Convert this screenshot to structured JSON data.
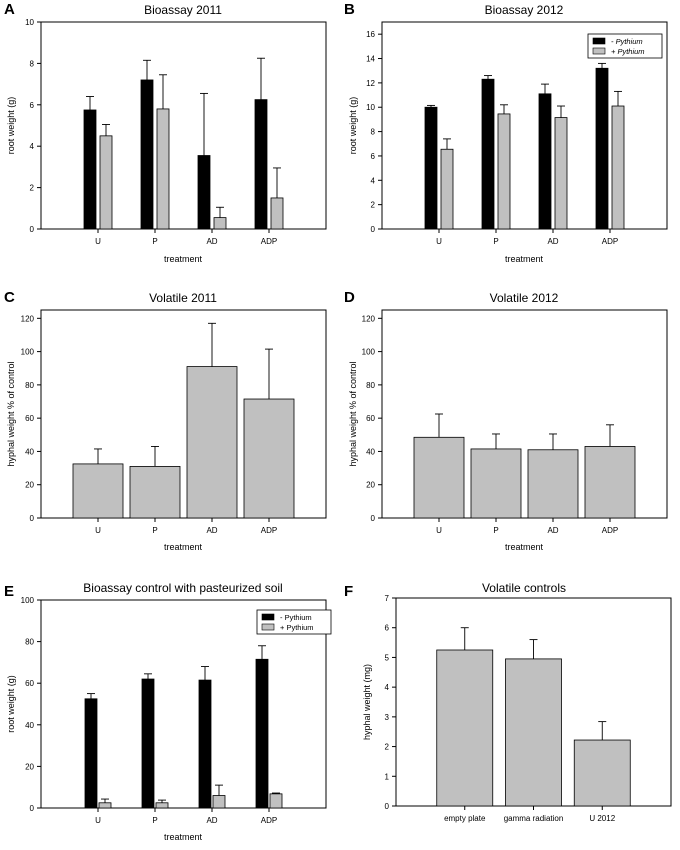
{
  "chart_data": [
    {
      "panel_letter": "A",
      "type": "bar",
      "title": "Bioassay 2011",
      "xlabel": "treatment",
      "ylabel": "root weight (g)",
      "categories": [
        "U",
        "P",
        "AD",
        "ADP"
      ],
      "ylim": [
        0,
        10
      ],
      "yticks": [
        0,
        2,
        4,
        6,
        8,
        10
      ],
      "series": [
        {
          "name": "- Pythium",
          "color": "#000000",
          "values": [
            5.75,
            7.2,
            3.55,
            6.25
          ],
          "errors": [
            0.65,
            0.95,
            3.0,
            2.0
          ]
        },
        {
          "name": "+ Pythium",
          "color": "#c0c0c0",
          "values": [
            4.5,
            5.8,
            0.55,
            1.5
          ],
          "errors": [
            0.55,
            1.65,
            0.5,
            1.45
          ]
        }
      ]
    },
    {
      "panel_letter": "B",
      "type": "bar",
      "title": "Bioassay 2012",
      "xlabel": "treatment",
      "ylabel": "root weight (g)",
      "categories": [
        "U",
        "P",
        "AD",
        "ADP"
      ],
      "ylim": [
        0,
        17
      ],
      "yticks": [
        0,
        2,
        4,
        6,
        8,
        10,
        12,
        14,
        16
      ],
      "legend": {
        "placement": "top-right",
        "italic": true
      },
      "series": [
        {
          "name": "- Pythium",
          "color": "#000000",
          "values": [
            10.0,
            12.3,
            11.1,
            13.2
          ],
          "errors": [
            0.15,
            0.3,
            0.8,
            0.4
          ]
        },
        {
          "name": "+ Pythium",
          "color": "#c0c0c0",
          "values": [
            6.55,
            9.45,
            9.15,
            10.1
          ],
          "errors": [
            0.85,
            0.75,
            0.95,
            1.2
          ]
        }
      ]
    },
    {
      "panel_letter": "C",
      "type": "bar",
      "title": "Volatile 2011",
      "xlabel": "treatment",
      "ylabel": "hyphal weight % of control",
      "categories": [
        "U",
        "P",
        "AD",
        "ADP"
      ],
      "ylim": [
        0,
        125
      ],
      "yticks": [
        0,
        20,
        40,
        60,
        80,
        100,
        120
      ],
      "series": [
        {
          "name": "hyphal weight",
          "color": "#c0c0c0",
          "values": [
            32.5,
            31,
            91,
            71.5
          ],
          "errors": [
            9,
            12,
            26,
            30
          ]
        }
      ]
    },
    {
      "panel_letter": "D",
      "type": "bar",
      "title": "Volatile 2012",
      "xlabel": "treatment",
      "ylabel": "hyphal weight % of control",
      "categories": [
        "U",
        "P",
        "AD",
        "ADP"
      ],
      "ylim": [
        0,
        125
      ],
      "yticks": [
        0,
        20,
        40,
        60,
        80,
        100,
        120
      ],
      "series": [
        {
          "name": "hyphal weight",
          "color": "#c0c0c0",
          "values": [
            48.5,
            41.5,
            41,
            43
          ],
          "errors": [
            14,
            9,
            9.5,
            13
          ]
        }
      ]
    },
    {
      "panel_letter": "E",
      "type": "bar",
      "title": "Bioassay control with pasteurized soil",
      "xlabel": "treatment",
      "ylabel": "root weight (g)",
      "categories": [
        "U",
        "P",
        "AD",
        "ADP"
      ],
      "ylim": [
        0,
        100
      ],
      "yticks": [
        0,
        20,
        40,
        60,
        80,
        100
      ],
      "legend": {
        "placement": "top-right",
        "italic": false
      },
      "series": [
        {
          "name": "- Pythium",
          "color": "#000000",
          "values": [
            52.5,
            62,
            61.5,
            71.5
          ],
          "errors": [
            2.5,
            2.5,
            6.5,
            6.5
          ]
        },
        {
          "name": "+ Pythium",
          "color": "#c0c0c0",
          "values": [
            2.5,
            2.5,
            6,
            6.8
          ],
          "errors": [
            1.8,
            1.3,
            5,
            0.4
          ]
        }
      ]
    },
    {
      "panel_letter": "F",
      "type": "bar",
      "title": "Volatile controls",
      "xlabel": "",
      "ylabel": "hyphal weight (mg)",
      "categories": [
        "empty plate",
        "gamma radiation",
        "U 2012"
      ],
      "ylim": [
        0,
        7
      ],
      "yticks": [
        0,
        1,
        2,
        3,
        4,
        5,
        6,
        7
      ],
      "series": [
        {
          "name": "hyphal weight",
          "color": "#c0c0c0",
          "values": [
            5.25,
            4.95,
            2.22
          ],
          "errors": [
            0.75,
            0.65,
            0.62
          ]
        }
      ]
    }
  ]
}
